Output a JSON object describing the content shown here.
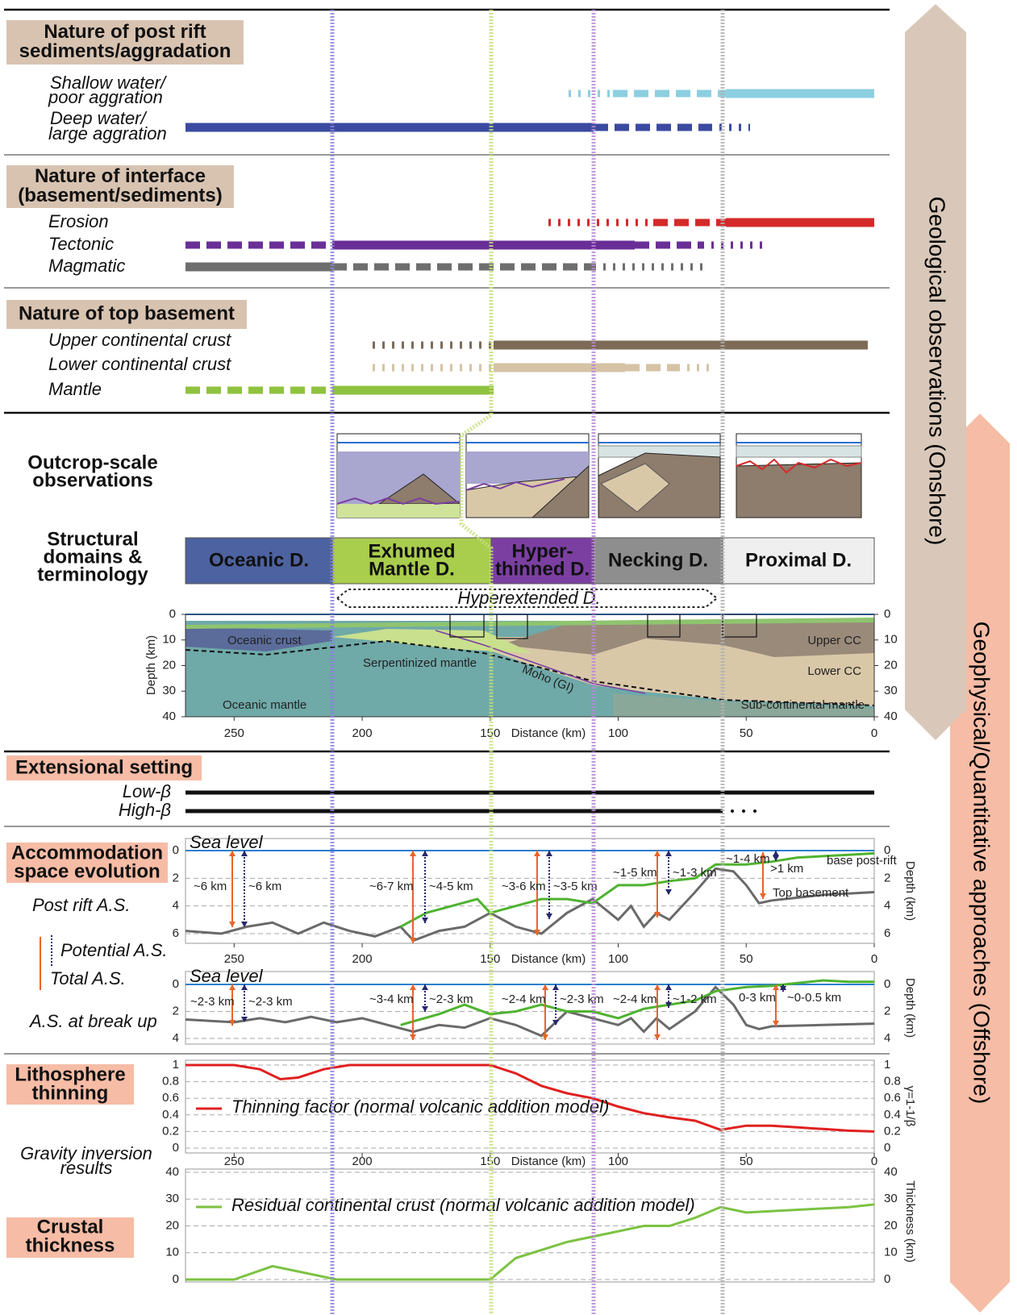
{
  "side_labels": {
    "onshore": "Geological observations (Onshore)",
    "offshore": "Geophysical/Quantitative approaches (Offshore)"
  },
  "sections": [
    {
      "title": [
        "Nature of post rift",
        "sediments/aggradation"
      ],
      "rows": [
        {
          "label": [
            "Shallow water/",
            "poor aggration"
          ],
          "color": "#8ccfe0"
        },
        {
          "label": [
            "Deep water/",
            "large aggration"
          ],
          "color": "#3b4aa0"
        }
      ]
    },
    {
      "title": [
        "Nature of interface",
        "(basement/sediments)"
      ],
      "rows": [
        {
          "label": [
            "Erosion"
          ],
          "color": "#d42a2a"
        },
        {
          "label": [
            "Tectonic"
          ],
          "color": "#6a2f97"
        },
        {
          "label": [
            "Magmatic"
          ],
          "color": "#6e6e6e"
        }
      ]
    },
    {
      "title": [
        "Nature of top basement"
      ],
      "rows": [
        {
          "label": [
            "Upper continental crust"
          ],
          "color": "#7d6b58"
        },
        {
          "label": [
            "Lower continental crust"
          ],
          "color": "#d6c3a5"
        },
        {
          "label": [
            "Mantle"
          ],
          "color": "#8fc23f"
        }
      ]
    }
  ],
  "outcrop": {
    "title": [
      "Outcrop-scale",
      "observations"
    ]
  },
  "domains": {
    "title": [
      "Structural",
      "domains &",
      "terminology"
    ],
    "items": [
      {
        "name": [
          "Oceanic D."
        ],
        "color": "#4d62a0",
        "text_color": "#1a1a2a"
      },
      {
        "name": [
          "Exhumed",
          "Mantle D."
        ],
        "color": "#a9cd4d",
        "text_color": "#1a1a1a"
      },
      {
        "name": [
          "Hyper-",
          "thinned D."
        ],
        "color": "#7b3fa2",
        "text_color": "#ffffff"
      },
      {
        "name": [
          "Necking D."
        ],
        "color": "#8e8e8e",
        "text_color": "#1a1a1a"
      },
      {
        "name": [
          "Proximal D."
        ],
        "color": "#efefef",
        "text_color": "#1a1a1a"
      }
    ],
    "hyperextended": "Hyperextended D."
  },
  "distance_axis": {
    "label": "Distance (km)",
    "xlim": [
      269,
      0
    ],
    "xticks": [
      250,
      200,
      150,
      100,
      50,
      0
    ]
  },
  "cross_section": {
    "y_label": "Depth (km)",
    "ylim": [
      0,
      40
    ],
    "yticks": [
      0,
      10,
      20,
      30,
      40
    ],
    "labels": [
      "Oceanic crust",
      "Serpentinized mantle",
      "Moho (GI)",
      "Upper CC",
      "Lower CC",
      "Oceanic mantle",
      "Sub-continental mantle"
    ]
  },
  "extensional": {
    "title": "Extensional setting",
    "rows": [
      "Low-β",
      "High-β"
    ]
  },
  "accommodation": {
    "title": [
      "Accommodation",
      "space evolution"
    ],
    "legend": {
      "potential": "Potential A.S.",
      "total": "Total A.S."
    },
    "sea_level": "Sea level",
    "y_label": "Depth (km)",
    "panels": [
      {
        "label": "Post rift A.S.",
        "ylim": [
          0,
          6
        ],
        "yticks": [
          0,
          2,
          4,
          6
        ],
        "series": [
          {
            "name": "Top basement",
            "color": "#6a6a6a",
            "x": [
              269,
              255,
              245,
              235,
              225,
              215,
              205,
              195,
              185,
              180,
              170,
              160,
              150,
              140,
              130,
              120,
              110,
              100,
              95,
              90,
              85,
              80,
              70,
              62,
              55,
              50,
              45,
              40,
              30,
              20,
              10,
              0
            ],
            "values": [
              5.8,
              6,
              5.5,
              5.2,
              6,
              5.2,
              5.8,
              6.2,
              5.5,
              6.5,
              5.8,
              5.5,
              4.5,
              5.5,
              6,
              4.5,
              3.5,
              5,
              4,
              5.5,
              4.5,
              5,
              3,
              1.3,
              1.5,
              2.5,
              3.8,
              3.6,
              3.4,
              3.2,
              3.1,
              3
            ]
          },
          {
            "name": "base post-rift",
            "color": "#4fb330",
            "x": [
              185,
              175,
              165,
              155,
              150,
              140,
              130,
              120,
              110,
              100,
              90,
              80,
              70,
              62,
              50,
              40,
              30,
              20,
              10,
              0
            ],
            "values": [
              5.5,
              4.5,
              4,
              3.5,
              4.5,
              4,
              3.5,
              3.5,
              3.8,
              2.5,
              2.5,
              2.2,
              2,
              1,
              1,
              0.8,
              0.5,
              0.4,
              0.3,
              0.2
            ]
          }
        ],
        "annotations": [
          {
            "text": "~6 km",
            "color": "#e8642a"
          },
          {
            "text": "~6 km",
            "color": "#26286b"
          },
          {
            "text": "~6-7 km",
            "color": "#e8642a"
          },
          {
            "text": "~4-5 km",
            "color": "#26286b"
          },
          {
            "text": "~3-6 km",
            "color": "#e8642a"
          },
          {
            "text": "~3-5 km",
            "color": "#26286b"
          },
          {
            "text": "~1-5 km",
            "color": "#e8642a"
          },
          {
            "text": "~1-3 km",
            "color": "#26286b"
          },
          {
            "text": "~1-4 km",
            "color": "#e8642a"
          },
          {
            "text": ">1 km",
            "color": "#26286b"
          }
        ]
      },
      {
        "label": "A.S. at break up",
        "ylim": [
          0,
          4
        ],
        "yticks": [
          0,
          2,
          4
        ],
        "series": [
          {
            "color": "#6a6a6a",
            "x": [
              269,
              250,
              240,
              230,
              220,
              210,
              200,
              190,
              180,
              170,
              160,
              150,
              140,
              130,
              120,
              110,
              100,
              95,
              90,
              85,
              80,
              70,
              62,
              55,
              50,
              45,
              40,
              20,
              0
            ],
            "values": [
              2.6,
              2.8,
              2.5,
              2.8,
              2.4,
              2.8,
              2.5,
              3,
              3.5,
              3,
              3.2,
              2.5,
              3,
              3.8,
              2,
              2.5,
              3,
              2.5,
              3.5,
              2.5,
              3.3,
              2,
              0.2,
              1.5,
              3,
              3.3,
              3.1,
              3,
              2.9
            ]
          },
          {
            "color": "#4fb330",
            "x": [
              185,
              170,
              160,
              150,
              140,
              130,
              120,
              110,
              100,
              90,
              80,
              70,
              62,
              50,
              40,
              30,
              20,
              10,
              0
            ],
            "values": [
              3,
              2.2,
              1.5,
              2.2,
              2,
              1.5,
              2,
              2,
              2.5,
              1.8,
              1.5,
              1.2,
              0.5,
              0.2,
              0.1,
              -0.1,
              -0.3,
              -0.2,
              -0.2
            ]
          }
        ],
        "annotations": [
          {
            "text": "~2-3 km",
            "color": "#e8642a"
          },
          {
            "text": "~2-3 km",
            "color": "#26286b"
          },
          {
            "text": "~3-4 km",
            "color": "#e8642a"
          },
          {
            "text": "~2-3 km",
            "color": "#26286b"
          },
          {
            "text": "~2-4 km",
            "color": "#e8642a"
          },
          {
            "text": "~2-3 km",
            "color": "#26286b"
          },
          {
            "text": "~2-4 km",
            "color": "#e8642a"
          },
          {
            "text": "~1-2 km",
            "color": "#26286b"
          },
          {
            "text": "0-3 km",
            "color": "#e8642a"
          },
          {
            "text": "~0-0.5 km",
            "color": "#26286b"
          }
        ]
      }
    ]
  },
  "thinning": {
    "title": [
      "Lithosphere",
      "thinning"
    ],
    "y_label": "γ=1-1/β",
    "ylim": [
      0,
      1
    ],
    "yticks": [
      0,
      0.2,
      0.4,
      0.6,
      0.8,
      1
    ],
    "series": [
      {
        "name": "Thinning factor (normal volcanic addition model)",
        "color": "#e02020",
        "x": [
          269,
          250,
          240,
          232,
          225,
          215,
          205,
          180,
          150,
          140,
          130,
          120,
          110,
          100,
          90,
          80,
          70,
          60,
          50,
          40,
          30,
          20,
          10,
          0
        ],
        "values": [
          1,
          1,
          0.95,
          0.83,
          0.85,
          0.95,
          1,
          1,
          1,
          0.9,
          0.75,
          0.66,
          0.6,
          0.5,
          0.42,
          0.37,
          0.33,
          0.22,
          0.27,
          0.27,
          0.25,
          0.23,
          0.21,
          0.2
        ]
      }
    ]
  },
  "gravity": [
    "Gravity inversion",
    "results"
  ],
  "crust": {
    "title": [
      "Crustal",
      "thickness"
    ],
    "y_label": "Thickness (km)",
    "ylim": [
      0,
      40
    ],
    "yticks": [
      0,
      10,
      20,
      30,
      40
    ],
    "series": [
      {
        "name": "Residual continental crust (normal volcanic addition model)",
        "color": "#7cc242",
        "x": [
          269,
          250,
          235,
          220,
          210,
          150,
          140,
          120,
          100,
          90,
          80,
          70,
          60,
          50,
          30,
          10,
          0
        ],
        "values": [
          0,
          0,
          5,
          2,
          0,
          0,
          8,
          14,
          18,
          20,
          20,
          23,
          27,
          25,
          26,
          27,
          28
        ]
      }
    ]
  }
}
